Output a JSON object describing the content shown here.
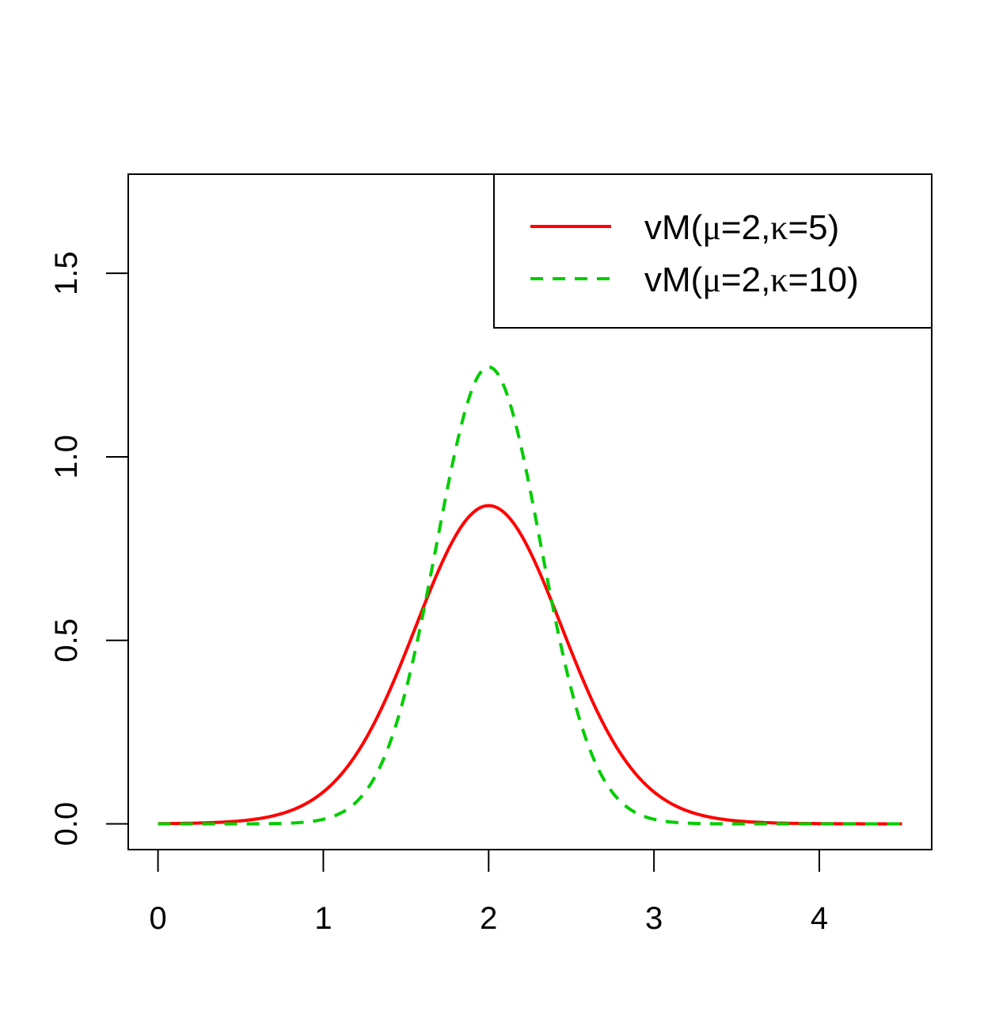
{
  "chart_data": {
    "type": "line",
    "title": "",
    "xlabel": "",
    "ylabel": "",
    "xlim": [
      -0.18,
      4.68
    ],
    "ylim": [
      -0.07,
      1.77
    ],
    "x_ticks": [
      0,
      1,
      2,
      3,
      4
    ],
    "x_tick_labels": [
      "0",
      "1",
      "2",
      "3",
      "4"
    ],
    "y_ticks": [
      0.0,
      0.5,
      1.0,
      1.5
    ],
    "y_tick_labels": [
      "0.0",
      "0.5",
      "1.0",
      "1.5"
    ],
    "grid": false,
    "legend_position": "top-right",
    "x_range": [
      0,
      4.5
    ],
    "series": [
      {
        "name": "vM(μ=2,κ=5)",
        "legend_label": {
          "prefix": "vM(",
          "mu": "μ",
          "middle": "=2,",
          "kappa": "κ",
          "suffix": "=5)"
        },
        "distribution": "von Mises",
        "mu": 2,
        "kappa": 5,
        "color": "#ff0000",
        "line_style": "solid",
        "peak_value": 0.87
      },
      {
        "name": "vM(μ=2,κ=10)",
        "legend_label": {
          "prefix": "vM(",
          "mu": "μ",
          "middle": "=2,",
          "kappa": "κ",
          "suffix": "=10)"
        },
        "distribution": "von Mises",
        "mu": 2,
        "kappa": 10,
        "color": "#00cd00",
        "line_style": "dashed",
        "peak_value": 1.25
      }
    ]
  }
}
